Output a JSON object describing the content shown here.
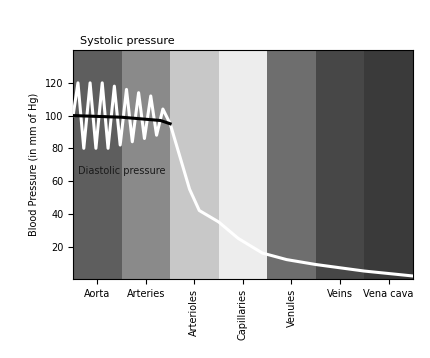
{
  "chart_data": {
    "type": "line",
    "y_label": "Blood Pressure (in mm of Hg)",
    "annotations": [
      "Systolic pressure",
      "Diastolic pressure"
    ],
    "categories": [
      "Aorta",
      "Arteries",
      "Arterioles",
      "Capillaries",
      "Venules",
      "Veins",
      "Vena cava"
    ],
    "colors": [
      "#5e5e5e",
      "#8a8a8a",
      "#c8c8c8",
      "#ededed",
      "#6e6e6e",
      "#474747",
      "#3a3a3a"
    ],
    "xlim": [
      -0.5,
      6.5
    ],
    "ylim": [
      0,
      140
    ],
    "yticks": [
      20,
      40,
      60,
      80,
      100,
      120
    ],
    "grid": false,
    "series": [
      {
        "color": "#ffffff",
        "line_style": "solid",
        "x": [
          -0.5,
          -0.4,
          -0.28,
          -0.15,
          -0.03,
          0.1,
          0.22,
          0.35,
          0.47,
          0.6,
          0.72,
          0.85,
          0.97,
          1.1,
          1.22,
          1.35,
          1.5,
          1.7,
          1.9,
          2.1,
          2.5,
          2.9,
          3.4,
          3.9,
          4.5,
          5.5,
          6.5
        ],
        "values": [
          100,
          120,
          80,
          120,
          80,
          120,
          80,
          118,
          82,
          116,
          84,
          114,
          86,
          112,
          88,
          104,
          95,
          75,
          55,
          42,
          35,
          25,
          16,
          12,
          9,
          5,
          2
        ]
      },
      {
        "color": "#000000",
        "line_style": "solid",
        "x": [
          -0.5,
          0.5,
          1.3,
          1.5
        ],
        "values": [
          100,
          99,
          97,
          95
        ]
      }
    ]
  }
}
